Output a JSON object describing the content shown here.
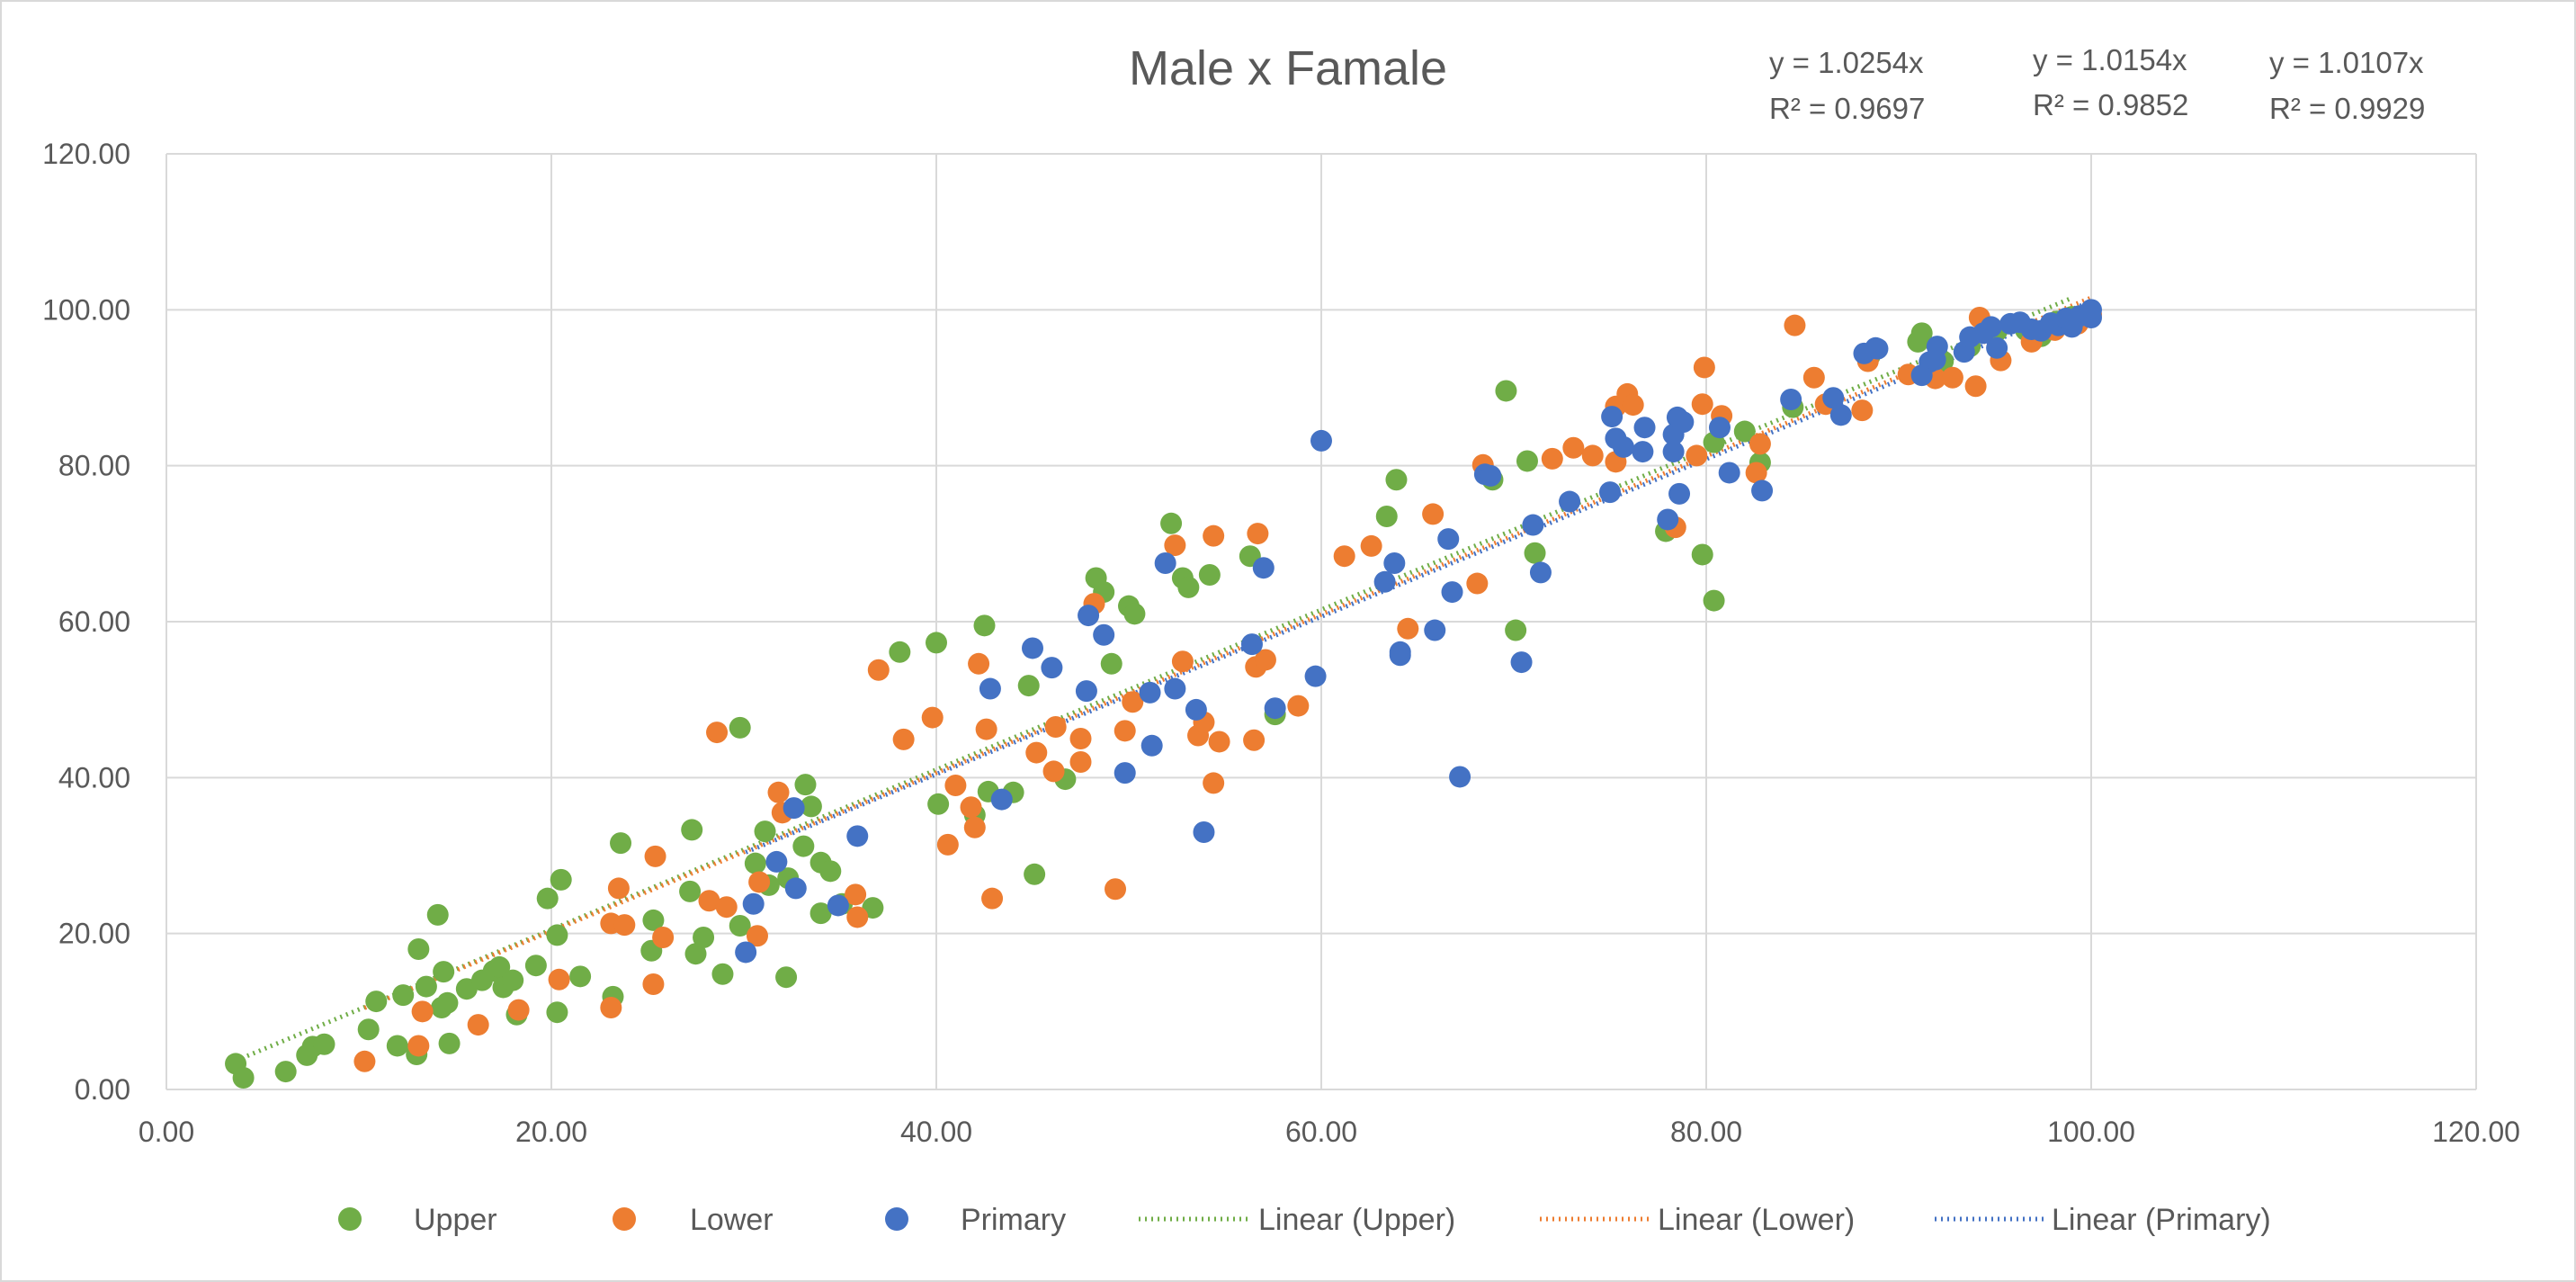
{
  "chart_data": {
    "type": "scatter",
    "title": "Male x Famale",
    "xlabel": "",
    "ylabel": "",
    "xlim": [
      0,
      120
    ],
    "ylim": [
      0,
      120
    ],
    "x_ticks": [
      "0.00",
      "20.00",
      "40.00",
      "60.00",
      "80.00",
      "100.00",
      "120.00"
    ],
    "y_ticks": [
      "0.00",
      "20.00",
      "40.00",
      "60.00",
      "80.00",
      "100.00",
      "120.00"
    ],
    "grid": true,
    "legend_position": "bottom",
    "trendline_equations": [
      {
        "eq": "y = 1.0254x",
        "r2": "R² = 0.9697"
      },
      {
        "eq": "y = 1.0154x",
        "r2": "R² = 0.9852"
      },
      {
        "eq": "y = 1.0107x",
        "r2": "R² = 0.9929"
      }
    ],
    "series": [
      {
        "name": "Upper",
        "color": "#70ad47",
        "trend_slope": 1.0254,
        "trend_label": "Linear (Upper)",
        "points": [
          [
            3.6,
            3.3
          ],
          [
            4.0,
            1.5
          ],
          [
            6.2,
            2.3
          ],
          [
            7.3,
            4.4
          ],
          [
            7.6,
            5.5
          ],
          [
            8.2,
            5.8
          ],
          [
            10.5,
            7.7
          ],
          [
            10.9,
            11.3
          ],
          [
            12.0,
            5.6
          ],
          [
            12.3,
            12.1
          ],
          [
            13.0,
            4.5
          ],
          [
            13.1,
            18.0
          ],
          [
            13.5,
            13.2
          ],
          [
            14.1,
            22.4
          ],
          [
            14.3,
            10.5
          ],
          [
            14.4,
            15.1
          ],
          [
            14.6,
            11.1
          ],
          [
            14.7,
            5.9
          ],
          [
            15.6,
            12.9
          ],
          [
            16.4,
            14.0
          ],
          [
            17.0,
            15.2
          ],
          [
            17.3,
            15.7
          ],
          [
            17.5,
            13.1
          ],
          [
            18.0,
            14.0
          ],
          [
            18.2,
            9.6
          ],
          [
            19.2,
            15.9
          ],
          [
            19.8,
            24.5
          ],
          [
            20.3,
            9.9
          ],
          [
            20.3,
            19.8
          ],
          [
            20.5,
            26.9
          ],
          [
            21.5,
            14.5
          ],
          [
            23.2,
            11.9
          ],
          [
            23.6,
            31.6
          ],
          [
            25.2,
            17.8
          ],
          [
            25.3,
            21.7
          ],
          [
            27.2,
            25.4
          ],
          [
            27.3,
            33.3
          ],
          [
            27.5,
            17.4
          ],
          [
            27.9,
            19.5
          ],
          [
            28.9,
            14.8
          ],
          [
            29.8,
            46.4
          ],
          [
            29.8,
            21.0
          ],
          [
            30.6,
            29.0
          ],
          [
            31.1,
            33.1
          ],
          [
            31.3,
            26.2
          ],
          [
            32.2,
            14.4
          ],
          [
            32.3,
            27.1
          ],
          [
            33.1,
            31.2
          ],
          [
            33.2,
            39.1
          ],
          [
            33.5,
            36.3
          ],
          [
            34.0,
            29.1
          ],
          [
            34.0,
            22.6
          ],
          [
            34.5,
            28.0
          ],
          [
            35.1,
            23.8
          ],
          [
            36.7,
            23.3
          ],
          [
            38.1,
            56.1
          ],
          [
            40.0,
            57.3
          ],
          [
            40.1,
            36.6
          ],
          [
            42.0,
            35.2
          ],
          [
            42.5,
            59.5
          ],
          [
            42.7,
            38.2
          ],
          [
            44.0,
            38.1
          ],
          [
            44.8,
            51.8
          ],
          [
            45.1,
            27.6
          ],
          [
            46.7,
            39.8
          ],
          [
            48.3,
            65.6
          ],
          [
            48.7,
            63.8
          ],
          [
            49.1,
            54.6
          ],
          [
            50.0,
            62.0
          ],
          [
            50.3,
            61.0
          ],
          [
            52.2,
            72.6
          ],
          [
            52.8,
            65.6
          ],
          [
            53.1,
            64.4
          ],
          [
            54.2,
            66.0
          ],
          [
            56.3,
            68.4
          ],
          [
            57.6,
            48.1
          ],
          [
            63.4,
            73.5
          ],
          [
            63.9,
            78.2
          ],
          [
            68.9,
            78.2
          ],
          [
            69.6,
            89.6
          ],
          [
            70.1,
            58.9
          ],
          [
            70.7,
            80.6
          ],
          [
            71.1,
            68.8
          ],
          [
            77.9,
            71.6
          ],
          [
            79.8,
            68.6
          ],
          [
            80.4,
            62.7
          ],
          [
            80.4,
            83.0
          ],
          [
            82.0,
            84.4
          ],
          [
            82.8,
            80.4
          ],
          [
            84.5,
            87.5
          ],
          [
            88.5,
            94.1
          ],
          [
            91.0,
            95.9
          ],
          [
            91.2,
            97.0
          ],
          [
            92.3,
            93.4
          ],
          [
            93.7,
            95.3
          ],
          [
            95.1,
            97.3
          ],
          [
            96.6,
            97.4
          ],
          [
            97.4,
            96.6
          ],
          [
            98.2,
            98.5
          ],
          [
            99.0,
            99.1
          ]
        ]
      },
      {
        "name": "Lower",
        "color": "#ed7d31",
        "trend_slope": 1.0154,
        "trend_label": "Linear (Lower)",
        "points": [
          [
            10.3,
            3.6
          ],
          [
            13.1,
            5.6
          ],
          [
            13.3,
            10.0
          ],
          [
            16.2,
            8.3
          ],
          [
            18.3,
            10.2
          ],
          [
            20.4,
            14.1
          ],
          [
            23.1,
            10.5
          ],
          [
            23.1,
            21.3
          ],
          [
            23.5,
            25.8
          ],
          [
            23.8,
            21.1
          ],
          [
            25.3,
            13.5
          ],
          [
            25.4,
            29.9
          ],
          [
            25.8,
            19.5
          ],
          [
            28.2,
            24.2
          ],
          [
            28.6,
            45.8
          ],
          [
            29.1,
            23.4
          ],
          [
            30.7,
            19.7
          ],
          [
            30.8,
            26.6
          ],
          [
            31.8,
            38.1
          ],
          [
            32.0,
            35.5
          ],
          [
            35.8,
            25.0
          ],
          [
            35.9,
            22.1
          ],
          [
            37.0,
            53.8
          ],
          [
            38.3,
            44.9
          ],
          [
            39.8,
            47.7
          ],
          [
            40.6,
            31.4
          ],
          [
            41.0,
            39.0
          ],
          [
            41.8,
            36.2
          ],
          [
            42.0,
            33.6
          ],
          [
            42.2,
            54.6
          ],
          [
            42.6,
            46.2
          ],
          [
            42.9,
            24.5
          ],
          [
            45.2,
            43.2
          ],
          [
            46.1,
            40.8
          ],
          [
            46.2,
            46.5
          ],
          [
            47.5,
            45.0
          ],
          [
            47.5,
            42.0
          ],
          [
            48.2,
            62.3
          ],
          [
            49.3,
            25.7
          ],
          [
            49.8,
            46.0
          ],
          [
            50.2,
            49.7
          ],
          [
            52.4,
            69.8
          ],
          [
            52.8,
            54.9
          ],
          [
            53.6,
            45.4
          ],
          [
            53.9,
            47.1
          ],
          [
            54.4,
            71.0
          ],
          [
            54.4,
            39.3
          ],
          [
            54.7,
            44.6
          ],
          [
            56.5,
            44.8
          ],
          [
            56.6,
            54.2
          ],
          [
            56.7,
            71.3
          ],
          [
            57.1,
            55.1
          ],
          [
            58.8,
            49.2
          ],
          [
            61.2,
            68.4
          ],
          [
            62.6,
            69.7
          ],
          [
            64.5,
            59.1
          ],
          [
            65.8,
            73.8
          ],
          [
            68.1,
            64.9
          ],
          [
            68.4,
            80.1
          ],
          [
            72.0,
            80.9
          ],
          [
            73.1,
            82.3
          ],
          [
            74.1,
            81.3
          ],
          [
            75.3,
            87.6
          ],
          [
            75.3,
            80.5
          ],
          [
            75.9,
            89.2
          ],
          [
            76.2,
            87.8
          ],
          [
            78.4,
            72.1
          ],
          [
            79.5,
            81.3
          ],
          [
            79.8,
            87.9
          ],
          [
            79.9,
            92.6
          ],
          [
            80.8,
            86.4
          ],
          [
            82.6,
            79.1
          ],
          [
            82.8,
            82.8
          ],
          [
            84.6,
            98.0
          ],
          [
            85.6,
            91.3
          ],
          [
            86.2,
            87.9
          ],
          [
            88.1,
            87.1
          ],
          [
            88.4,
            93.4
          ],
          [
            90.5,
            91.7
          ],
          [
            91.9,
            91.2
          ],
          [
            92.8,
            91.3
          ],
          [
            94.0,
            90.2
          ],
          [
            94.2,
            99.0
          ],
          [
            95.3,
            93.5
          ],
          [
            96.9,
            95.9
          ],
          [
            98.1,
            97.4
          ],
          [
            99.3,
            98.2
          ],
          [
            100.0,
            99.4
          ]
        ]
      },
      {
        "name": "Primary",
        "color": "#4472c4",
        "trend_slope": 1.0107,
        "trend_label": "Linear (Primary)",
        "points": [
          [
            30.1,
            17.6
          ],
          [
            30.5,
            23.8
          ],
          [
            31.7,
            29.2
          ],
          [
            32.6,
            36.1
          ],
          [
            32.7,
            25.8
          ],
          [
            34.9,
            23.6
          ],
          [
            35.9,
            32.5
          ],
          [
            42.8,
            51.4
          ],
          [
            43.4,
            37.2
          ],
          [
            45.0,
            56.6
          ],
          [
            46.0,
            54.1
          ],
          [
            47.8,
            51.1
          ],
          [
            47.9,
            60.8
          ],
          [
            48.7,
            58.3
          ],
          [
            49.8,
            40.6
          ],
          [
            51.1,
            50.9
          ],
          [
            51.2,
            44.1
          ],
          [
            51.9,
            67.5
          ],
          [
            52.4,
            51.4
          ],
          [
            53.5,
            48.7
          ],
          [
            53.9,
            33.0
          ],
          [
            56.4,
            57.1
          ],
          [
            57.0,
            66.9
          ],
          [
            57.6,
            48.9
          ],
          [
            59.7,
            53.0
          ],
          [
            60.0,
            83.2
          ],
          [
            63.3,
            65.1
          ],
          [
            63.8,
            67.5
          ],
          [
            64.1,
            55.7
          ],
          [
            64.1,
            56.1
          ],
          [
            65.9,
            58.9
          ],
          [
            66.6,
            70.6
          ],
          [
            66.8,
            63.8
          ],
          [
            67.2,
            40.1
          ],
          [
            68.5,
            78.9
          ],
          [
            68.8,
            78.7
          ],
          [
            70.4,
            54.8
          ],
          [
            71.0,
            72.4
          ],
          [
            71.4,
            66.3
          ],
          [
            72.9,
            75.4
          ],
          [
            75.0,
            76.6
          ],
          [
            75.1,
            86.3
          ],
          [
            75.3,
            83.5
          ],
          [
            75.7,
            82.4
          ],
          [
            76.7,
            81.8
          ],
          [
            76.8,
            84.9
          ],
          [
            78.0,
            73.1
          ],
          [
            78.3,
            81.8
          ],
          [
            78.3,
            84.0
          ],
          [
            78.5,
            86.2
          ],
          [
            78.6,
            76.4
          ],
          [
            78.8,
            85.6
          ],
          [
            80.7,
            84.9
          ],
          [
            81.2,
            79.1
          ],
          [
            82.9,
            76.8
          ],
          [
            84.4,
            88.5
          ],
          [
            86.6,
            88.7
          ],
          [
            87.0,
            86.5
          ],
          [
            88.2,
            94.4
          ],
          [
            88.8,
            95.1
          ],
          [
            88.9,
            95.0
          ],
          [
            91.2,
            91.6
          ],
          [
            91.6,
            93.3
          ],
          [
            91.9,
            93.6
          ],
          [
            92.0,
            95.3
          ],
          [
            93.4,
            94.6
          ],
          [
            93.7,
            96.5
          ],
          [
            94.4,
            97.0
          ],
          [
            94.8,
            97.8
          ],
          [
            95.1,
            95.1
          ],
          [
            95.8,
            98.2
          ],
          [
            96.3,
            98.4
          ],
          [
            96.9,
            97.5
          ],
          [
            97.4,
            97.3
          ],
          [
            97.9,
            98.3
          ],
          [
            98.3,
            98.0
          ],
          [
            98.7,
            98.9
          ],
          [
            99.0,
            97.8
          ],
          [
            99.4,
            99.2
          ],
          [
            99.9,
            99.6
          ],
          [
            100.0,
            99.0
          ],
          [
            100.0,
            100.0
          ]
        ]
      }
    ]
  }
}
